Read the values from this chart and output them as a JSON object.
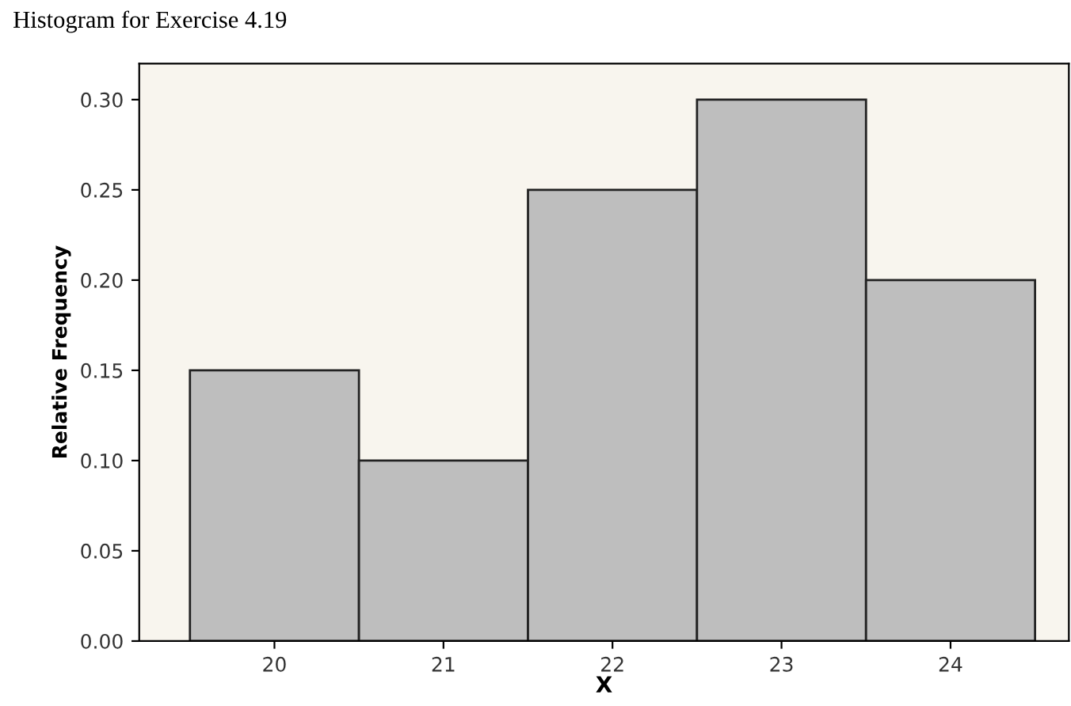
{
  "chart_data": {
    "type": "histogram",
    "title": "Histogram for Exercise 4.19",
    "xlabel": "X",
    "ylabel": "Relative Frequency",
    "bins": [
      19.5,
      20.5,
      21.5,
      22.5,
      23.5,
      24.5
    ],
    "values": [
      0.15,
      0.1,
      0.25,
      0.3,
      0.2
    ],
    "color": "#bebebe",
    "xlim": [
      19.2,
      24.7
    ],
    "xticks": [
      20,
      21,
      22,
      23,
      24
    ],
    "ylim": [
      0,
      0.32
    ],
    "yticks": [
      {
        "value": 0,
        "label": "0.00"
      },
      {
        "value": 0.05,
        "label": "0.05"
      },
      {
        "value": 0.1,
        "label": "0.10"
      },
      {
        "value": 0.15,
        "label": "0.15"
      },
      {
        "value": 0.2,
        "label": "0.20"
      },
      {
        "value": 0.25,
        "label": "0.25"
      },
      {
        "value": 0.3,
        "label": "0.30"
      }
    ],
    "grid": false,
    "legend": false
  }
}
